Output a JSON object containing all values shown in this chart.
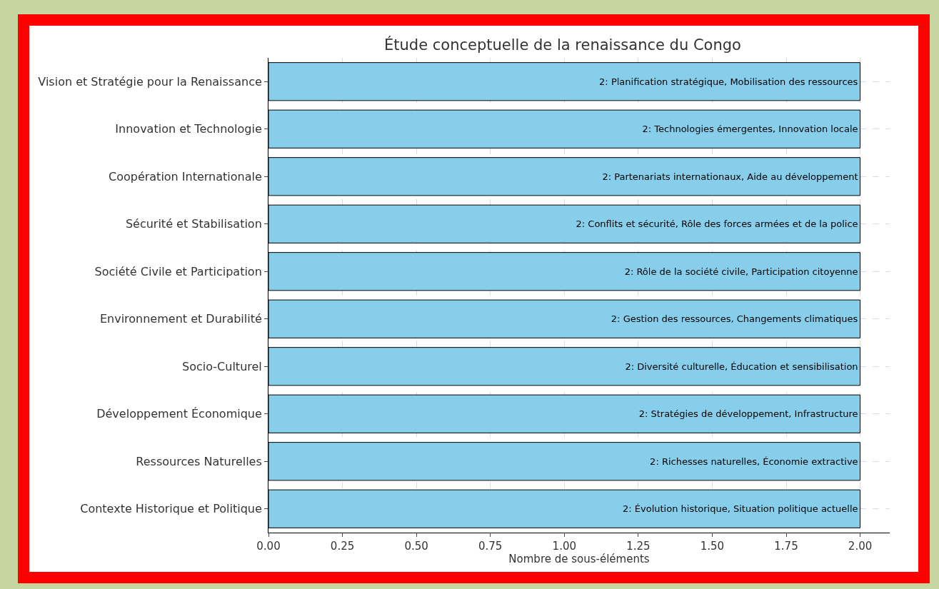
{
  "chart_data": {
    "type": "bar",
    "orientation": "horizontal",
    "title": "Étude conceptuelle de la renaissance du Congo",
    "xlabel": "Nombre de sous-éléments",
    "categories": [
      "Vision et Stratégie pour la Renaissance",
      "Innovation et Technologie",
      "Coopération Internationale",
      "Sécurité et Stabilisation",
      "Société Civile et Participation",
      "Environnement et Durabilité",
      "Socio-Culturel",
      "Développement Économique",
      "Ressources Naturelles",
      "Contexte Historique et Politique"
    ],
    "values": [
      2,
      2,
      2,
      2,
      2,
      2,
      2,
      2,
      2,
      2
    ],
    "value_labels": [
      "2: Planification stratégique, Mobilisation des ressources",
      "2: Technologies émergentes, Innovation locale",
      "2: Partenariats internationaux, Aide au développement",
      "2: Conflits et sécurité, Rôle des forces armées et de la police",
      "2: Rôle de la société civile, Participation citoyenne",
      "2: Gestion des ressources, Changements climatiques",
      "2: Diversité culturelle, Éducation et sensibilisation",
      "2: Stratégies de développement, Infrastructure",
      "2: Richesses naturelles, Économie extractive",
      "2: Évolution historique, Situation politique actuelle"
    ],
    "color": "#87ceeb",
    "xlim": [
      0,
      2.1
    ],
    "xticks": [
      {
        "value": 0,
        "label": "0.00"
      },
      {
        "value": 0.25,
        "label": "0.25"
      },
      {
        "value": 0.5,
        "label": "0.50"
      },
      {
        "value": 0.75,
        "label": "0.75"
      },
      {
        "value": 1,
        "label": "1.00"
      },
      {
        "value": 1.25,
        "label": "1.25"
      },
      {
        "value": 1.5,
        "label": "1.50"
      },
      {
        "value": 1.75,
        "label": "1.75"
      },
      {
        "value": 2,
        "label": "2.00"
      }
    ],
    "grid": true
  }
}
